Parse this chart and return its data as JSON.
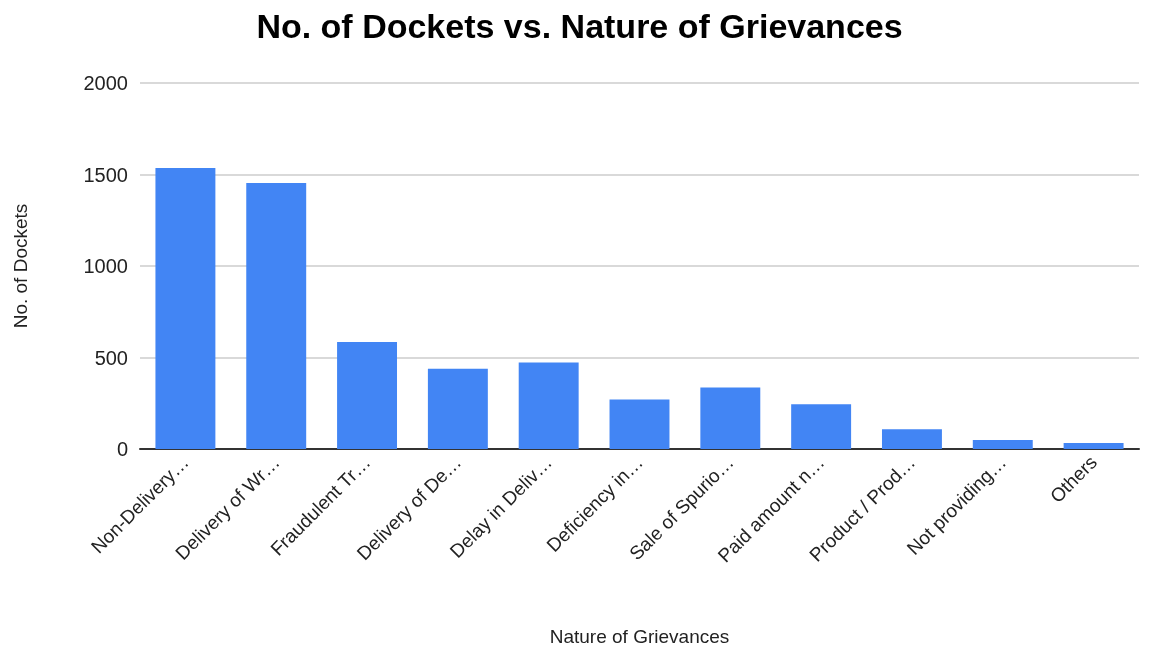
{
  "chart_data": {
    "type": "bar",
    "title": "No. of Dockets vs. Nature of Grievances",
    "xlabel": "Nature of Grievances",
    "ylabel": "No. of Dockets",
    "categories": [
      "Non-Delivery…",
      "Delivery of Wr…",
      "Fraudulent Tr…",
      "Delivery of De…",
      "Delay in Deliv…",
      "Deficiency in…",
      "Sale of Spurio…",
      "Paid amount n…",
      "Product / Prod…",
      "Not providing…",
      "Others"
    ],
    "values": [
      1535,
      1453,
      585,
      439,
      472,
      271,
      336,
      244,
      108,
      49,
      33
    ],
    "color": "#4285f4",
    "ylim": [
      0,
      2000
    ],
    "yticks": [
      0,
      500,
      1000,
      1500,
      2000
    ],
    "grid": "y"
  }
}
